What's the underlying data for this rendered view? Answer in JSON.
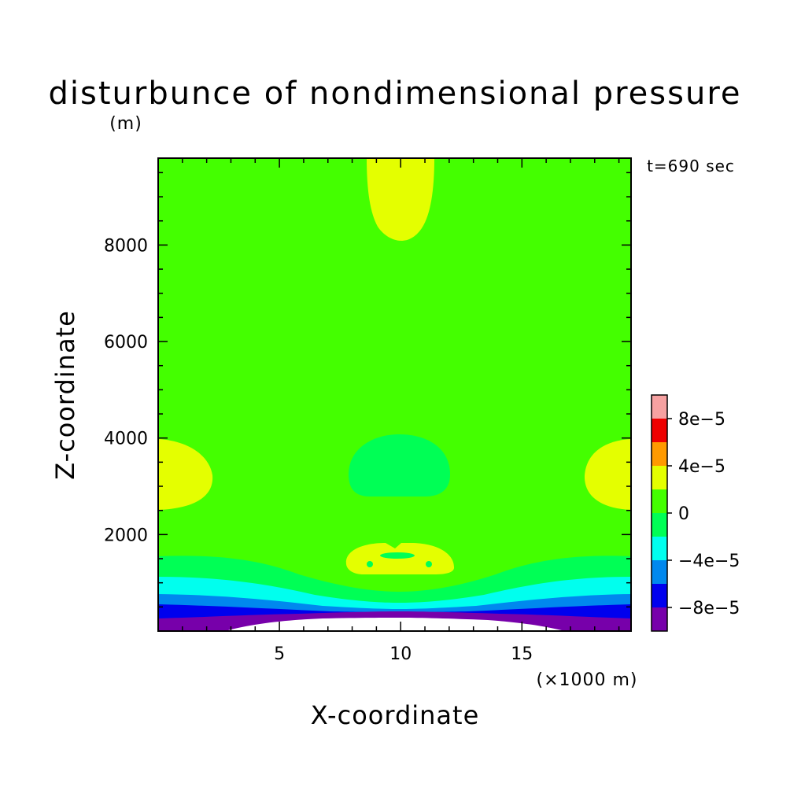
{
  "chart_data": {
    "type": "heatmap",
    "title": "disturbunce of nondimensional pressure",
    "time_label": "t=690 sec",
    "xlabel": "X-coordinate",
    "ylabel": "Z-coordinate",
    "x_unit": "(×1000 m)",
    "y_unit": "(m)",
    "xlim": [
      0,
      19.5
    ],
    "ylim": [
      0,
      9800
    ],
    "x_ticks": [
      "5",
      "10",
      "15"
    ],
    "y_ticks": [
      "2000",
      "4000",
      "6000",
      "8000"
    ],
    "x_tick_values": [
      5,
      10,
      15
    ],
    "y_tick_values": [
      2000,
      4000,
      6000,
      8000
    ],
    "colorbar": {
      "labels": [
        "8e−5",
        "4e−5",
        "0",
        "−4e−5",
        "−8e−5"
      ],
      "label_values": [
        8e-05,
        4e-05,
        0,
        -4e-05,
        -8e-05
      ],
      "bins": [
        {
          "min": 8e-05,
          "max": 0.0001,
          "color": "#f6a1a1"
        },
        {
          "min": 6e-05,
          "max": 8e-05,
          "color": "#ee0000"
        },
        {
          "min": 4e-05,
          "max": 6e-05,
          "color": "#ff9a00"
        },
        {
          "min": 2e-05,
          "max": 4e-05,
          "color": "#e4ff00"
        },
        {
          "min": 0,
          "max": 2e-05,
          "color": "#44ff00"
        },
        {
          "min": -2e-05,
          "max": 0,
          "color": "#00ff55"
        },
        {
          "min": -4e-05,
          "max": -2e-05,
          "color": "#00ffee"
        },
        {
          "min": -6e-05,
          "max": -4e-05,
          "color": "#0088ee"
        },
        {
          "min": -8e-05,
          "max": -6e-05,
          "color": "#0000ee"
        },
        {
          "min": -0.0001,
          "max": -8e-05,
          "color": "#7700aa"
        }
      ]
    },
    "regions": [
      {
        "name": "background",
        "level_range": [
          0,
          2e-05
        ],
        "color": "#44ff00"
      },
      {
        "name": "top-center-positive",
        "level_range": [
          2e-05,
          4e-05
        ],
        "color": "#e4ff00"
      },
      {
        "name": "left-mid-positive",
        "level_range": [
          2e-05,
          4e-05
        ],
        "color": "#e4ff00"
      },
      {
        "name": "right-mid-positive",
        "level_range": [
          2e-05,
          4e-05
        ],
        "color": "#e4ff00"
      },
      {
        "name": "center-negative",
        "level_range": [
          -2e-05,
          0
        ],
        "color": "#00ff55"
      },
      {
        "name": "lower-center-positive",
        "level_range": [
          2e-05,
          4e-05
        ],
        "color": "#e4ff00"
      },
      {
        "name": "bottom-layers",
        "level_range": [
          -0.0001,
          0
        ],
        "colors": [
          "#00ff55",
          "#00ffee",
          "#0088ee",
          "#0000ee",
          "#7700aa"
        ]
      },
      {
        "name": "bottom-center-gap",
        "level_range": [
          -0.0001,
          -0.0001
        ],
        "color": "#ffffff"
      }
    ]
  }
}
